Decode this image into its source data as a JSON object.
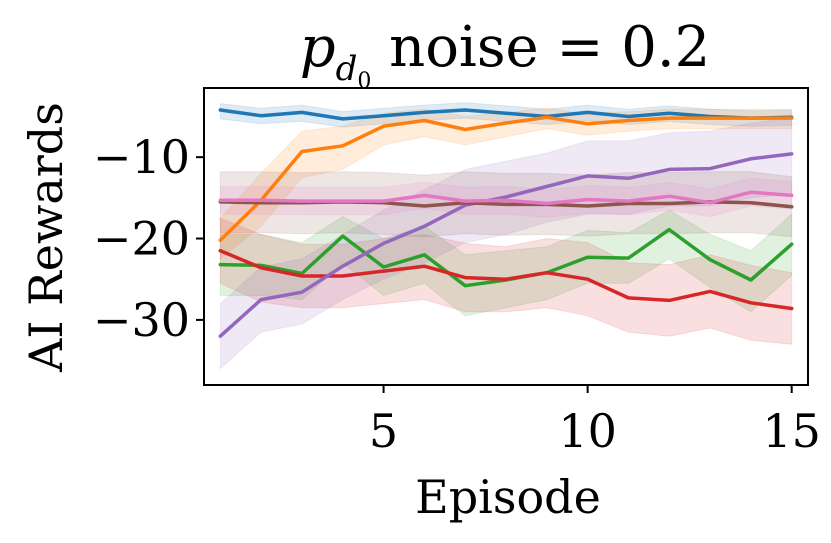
{
  "chart_data": {
    "type": "line",
    "title": {
      "symbol": "p",
      "subscript": "d",
      "subsubscript": "0",
      "rest": " noise = 0.2"
    },
    "xlabel": "Episode",
    "ylabel": "AI Rewards",
    "xlim": [
      0.6,
      15.4
    ],
    "ylim": [
      -38,
      -1.5
    ],
    "xticks": [
      5,
      10,
      15
    ],
    "yticks": [
      -10,
      -20,
      -30
    ],
    "xtick_labels": [
      "5",
      "10",
      "15"
    ],
    "ytick_labels": [
      "−10",
      "−20",
      "−30"
    ],
    "grid": false,
    "legend": "none",
    "x": [
      1,
      2,
      3,
      4,
      5,
      6,
      7,
      8,
      9,
      10,
      11,
      12,
      13,
      14,
      15
    ],
    "series": [
      {
        "color": "#1f77b4",
        "values": [
          -4.2,
          -4.9,
          -4.5,
          -5.3,
          -4.9,
          -4.5,
          -4.2,
          -4.6,
          -5.0,
          -4.5,
          -5.0,
          -4.6,
          -5.0,
          -5.2,
          -5.1
        ],
        "lower": [
          -5.3,
          -5.9,
          -5.6,
          -6.3,
          -5.9,
          -5.5,
          -5.2,
          -5.6,
          -6.0,
          -5.5,
          -6.0,
          -5.6,
          -6.0,
          -6.2,
          -6.1
        ],
        "upper": [
          -3.4,
          -4.0,
          -3.6,
          -4.4,
          -4.0,
          -3.6,
          -3.3,
          -3.7,
          -4.1,
          -3.6,
          -4.1,
          -3.7,
          -4.1,
          -4.3,
          -4.2
        ]
      },
      {
        "color": "#ff7f0e",
        "values": [
          -20.2,
          -15.3,
          -9.3,
          -8.6,
          -6.2,
          -5.5,
          -6.6,
          -5.8,
          -5.1,
          -5.9,
          -5.5,
          -5.2,
          -5.2,
          -5.2,
          -5.2
        ],
        "lower": [
          -22.5,
          -18.5,
          -12.5,
          -11.5,
          -8.5,
          -7.5,
          -8.5,
          -7.5,
          -6.5,
          -7.3,
          -6.8,
          -6.5,
          -6.5,
          -6.5,
          -6.5
        ],
        "upper": [
          -17.5,
          -12.0,
          -6.8,
          -6.2,
          -4.6,
          -4.1,
          -5.0,
          -4.5,
          -4.0,
          -4.7,
          -4.4,
          -4.1,
          -4.1,
          -4.1,
          -4.1
        ]
      },
      {
        "color": "#2ca02c",
        "values": [
          -23.2,
          -23.3,
          -24.3,
          -19.7,
          -23.5,
          -22.0,
          -25.8,
          -25.1,
          -24.2,
          -22.3,
          -22.4,
          -18.9,
          -22.6,
          -25.1,
          -20.7
        ],
        "lower": [
          -27.0,
          -27.0,
          -27.5,
          -23.0,
          -27.0,
          -25.5,
          -29.5,
          -28.5,
          -27.5,
          -25.5,
          -25.5,
          -22.5,
          -26.0,
          -29.0,
          -24.5
        ],
        "upper": [
          -19.5,
          -19.5,
          -20.5,
          -17.3,
          -20.0,
          -18.5,
          -22.0,
          -21.5,
          -21.0,
          -19.0,
          -19.3,
          -16.5,
          -19.5,
          -21.5,
          -17.0
        ]
      },
      {
        "color": "#d62728",
        "values": [
          -21.5,
          -23.6,
          -24.6,
          -24.6,
          -24.0,
          -23.4,
          -24.8,
          -25.0,
          -24.2,
          -25.0,
          -27.3,
          -27.6,
          -26.5,
          -27.9,
          -28.6
        ],
        "lower": [
          -25.5,
          -27.8,
          -28.5,
          -28.5,
          -28.0,
          -27.5,
          -29.0,
          -29.0,
          -28.5,
          -29.5,
          -31.5,
          -32.0,
          -31.0,
          -32.5,
          -33.0
        ],
        "upper": [
          -17.5,
          -19.5,
          -20.7,
          -20.7,
          -20.0,
          -19.5,
          -20.6,
          -21.0,
          -20.0,
          -20.5,
          -23.0,
          -23.2,
          -22.0,
          -23.3,
          -24.2
        ]
      },
      {
        "color": "#9467bd",
        "values": [
          -32.0,
          -27.5,
          -26.6,
          -23.4,
          -20.6,
          -18.5,
          -15.9,
          -14.9,
          -13.6,
          -12.3,
          -12.6,
          -11.5,
          -11.4,
          -10.2,
          -9.6
        ],
        "lower": [
          -36.0,
          -31.5,
          -30.5,
          -27.5,
          -25.0,
          -23.0,
          -20.5,
          -19.5,
          -18.0,
          -17.0,
          -17.0,
          -16.0,
          -16.0,
          -15.0,
          -14.5
        ],
        "upper": [
          -28.0,
          -23.5,
          -22.5,
          -19.5,
          -16.5,
          -14.0,
          -11.5,
          -10.5,
          -9.5,
          -8.0,
          -8.0,
          -7.0,
          -6.8,
          -5.8,
          -5.2
        ]
      },
      {
        "color": "#8c564b",
        "values": [
          -15.5,
          -15.6,
          -15.6,
          -15.5,
          -15.6,
          -16.0,
          -15.6,
          -15.8,
          -15.8,
          -16.0,
          -15.7,
          -15.7,
          -15.5,
          -15.6,
          -16.1
        ],
        "lower": [
          -19.3,
          -19.3,
          -19.4,
          -19.3,
          -19.5,
          -19.8,
          -19.4,
          -19.6,
          -19.5,
          -19.7,
          -19.4,
          -19.4,
          -19.3,
          -19.3,
          -19.8
        ],
        "upper": [
          -11.8,
          -11.8,
          -11.9,
          -11.8,
          -11.9,
          -12.2,
          -11.8,
          -12.0,
          -12.0,
          -12.2,
          -11.9,
          -11.9,
          -11.8,
          -11.8,
          -12.4
        ]
      },
      {
        "color": "#e377c2",
        "values": [
          -15.3,
          -15.3,
          -15.4,
          -15.4,
          -15.4,
          -14.7,
          -15.4,
          -15.3,
          -15.7,
          -15.2,
          -15.4,
          -14.8,
          -15.6,
          -14.3,
          -14.7
        ],
        "lower": [
          -17.0,
          -17.0,
          -17.1,
          -17.1,
          -17.1,
          -16.3,
          -17.0,
          -17.0,
          -17.4,
          -16.9,
          -17.1,
          -16.5,
          -17.3,
          -16.0,
          -16.4
        ],
        "upper": [
          -13.6,
          -13.6,
          -13.7,
          -13.7,
          -13.7,
          -13.1,
          -13.7,
          -13.6,
          -14.0,
          -13.5,
          -13.7,
          -13.1,
          -13.9,
          -12.6,
          -13.0
        ]
      }
    ]
  }
}
